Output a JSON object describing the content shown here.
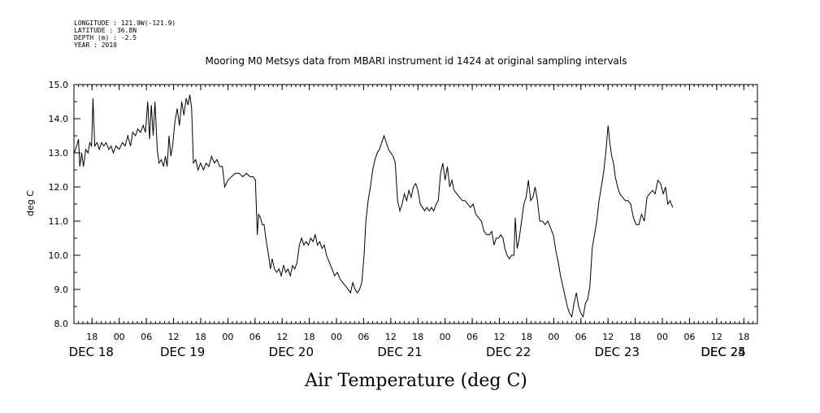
{
  "header": {
    "longitude": "LONGITUDE : 121.9W(-121.9)",
    "latitude": "LATITUDE : 36.8N",
    "depth": "DEPTH (m) : -2.5",
    "year": "YEAR : 2010"
  },
  "chart_data": {
    "type": "line",
    "title": "Mooring M0 Metsys data from MBARI instrument id 1424 at original sampling intervals",
    "xlabel": "Air Temperature (deg C)",
    "ylabel": "deg C",
    "ylim": [
      8.0,
      15.0
    ],
    "y_ticks": [
      "8.0",
      "9.0",
      "10.0",
      "11.0",
      "12.0",
      "13.0",
      "14.0",
      "15.0"
    ],
    "x_unit": "hours since Dec 18 00:00",
    "xlim": [
      14,
      165
    ],
    "hour_ticks": [
      {
        "x": 18,
        "label": "18"
      },
      {
        "x": 24,
        "label": "00"
      },
      {
        "x": 30,
        "label": "06"
      },
      {
        "x": 36,
        "label": "12"
      },
      {
        "x": 42,
        "label": "18"
      },
      {
        "x": 48,
        "label": "00"
      },
      {
        "x": 54,
        "label": "06"
      },
      {
        "x": 60,
        "label": "12"
      },
      {
        "x": 66,
        "label": "18"
      },
      {
        "x": 72,
        "label": "00"
      },
      {
        "x": 78,
        "label": "06"
      },
      {
        "x": 84,
        "label": "12"
      },
      {
        "x": 90,
        "label": "18"
      },
      {
        "x": 96,
        "label": "00"
      },
      {
        "x": 102,
        "label": "06"
      },
      {
        "x": 108,
        "label": "12"
      },
      {
        "x": 114,
        "label": "18"
      },
      {
        "x": 120,
        "label": "00"
      },
      {
        "x": 126,
        "label": "06"
      },
      {
        "x": 132,
        "label": "12"
      },
      {
        "x": 138,
        "label": "18"
      },
      {
        "x": 144,
        "label": "00"
      },
      {
        "x": 150,
        "label": "06"
      },
      {
        "x": 156,
        "label": "12"
      },
      {
        "x": 162,
        "label": "18"
      }
    ],
    "date_labels": [
      {
        "x": 18,
        "label": "DEC 18"
      },
      {
        "x": 38,
        "label": "DEC 19"
      },
      {
        "x": 62,
        "label": "DEC 20"
      },
      {
        "x": 86,
        "label": "DEC 21"
      },
      {
        "x": 110,
        "label": "DEC 22"
      },
      {
        "x": 134,
        "label": "DEC 23"
      },
      {
        "x": 158,
        "label": "DEC 24"
      },
      {
        "x": 182,
        "label": "DEC 25"
      }
    ],
    "series": [
      {
        "color": "#000000",
        "points": [
          [
            14.1,
            13.0
          ],
          [
            14.6,
            13.2
          ],
          [
            15.0,
            13.4
          ],
          [
            15.3,
            12.6
          ],
          [
            15.7,
            13.0
          ],
          [
            16.1,
            12.6
          ],
          [
            16.6,
            13.1
          ],
          [
            17.1,
            13.0
          ],
          [
            17.5,
            13.3
          ],
          [
            17.9,
            13.2
          ],
          [
            18.2,
            14.6
          ],
          [
            18.6,
            13.2
          ],
          [
            19.1,
            13.3
          ],
          [
            19.6,
            13.1
          ],
          [
            20.1,
            13.3
          ],
          [
            20.6,
            13.2
          ],
          [
            21.1,
            13.3
          ],
          [
            21.7,
            13.1
          ],
          [
            22.2,
            13.2
          ],
          [
            22.7,
            13.0
          ],
          [
            23.3,
            13.2
          ],
          [
            24.0,
            13.1
          ],
          [
            24.7,
            13.3
          ],
          [
            25.3,
            13.2
          ],
          [
            25.9,
            13.5
          ],
          [
            26.5,
            13.2
          ],
          [
            27.0,
            13.6
          ],
          [
            27.6,
            13.5
          ],
          [
            28.1,
            13.7
          ],
          [
            28.7,
            13.6
          ],
          [
            29.3,
            13.8
          ],
          [
            29.8,
            13.6
          ],
          [
            30.3,
            14.5
          ],
          [
            30.7,
            13.4
          ],
          [
            31.1,
            14.4
          ],
          [
            31.5,
            13.5
          ],
          [
            31.9,
            14.5
          ],
          [
            32.4,
            13.1
          ],
          [
            32.8,
            12.7
          ],
          [
            33.3,
            12.8
          ],
          [
            33.8,
            12.6
          ],
          [
            34.2,
            12.9
          ],
          [
            34.6,
            12.6
          ],
          [
            35.0,
            13.5
          ],
          [
            35.4,
            12.9
          ],
          [
            35.8,
            13.2
          ],
          [
            36.3,
            13.9
          ],
          [
            36.8,
            14.3
          ],
          [
            37.3,
            13.8
          ],
          [
            37.8,
            14.5
          ],
          [
            38.3,
            14.1
          ],
          [
            38.8,
            14.6
          ],
          [
            39.2,
            14.4
          ],
          [
            39.6,
            14.7
          ],
          [
            40.0,
            14.3
          ],
          [
            40.4,
            12.7
          ],
          [
            40.9,
            12.8
          ],
          [
            41.4,
            12.5
          ],
          [
            42.0,
            12.7
          ],
          [
            42.6,
            12.5
          ],
          [
            43.2,
            12.7
          ],
          [
            43.8,
            12.6
          ],
          [
            44.4,
            12.9
          ],
          [
            45.0,
            12.7
          ],
          [
            45.6,
            12.8
          ],
          [
            46.2,
            12.6
          ],
          [
            46.8,
            12.6
          ],
          [
            47.3,
            12.0
          ],
          [
            48.0,
            12.2
          ],
          [
            48.8,
            12.3
          ],
          [
            49.6,
            12.4
          ],
          [
            50.5,
            12.4
          ],
          [
            51.3,
            12.3
          ],
          [
            52.1,
            12.4
          ],
          [
            52.9,
            12.3
          ],
          [
            53.6,
            12.3
          ],
          [
            54.1,
            12.2
          ],
          [
            54.5,
            10.6
          ],
          [
            54.8,
            11.2
          ],
          [
            55.2,
            11.1
          ],
          [
            55.6,
            10.9
          ],
          [
            56.0,
            10.9
          ],
          [
            56.5,
            10.4
          ],
          [
            57.0,
            10.0
          ],
          [
            57.4,
            9.6
          ],
          [
            57.8,
            9.9
          ],
          [
            58.3,
            9.6
          ],
          [
            58.8,
            9.5
          ],
          [
            59.3,
            9.6
          ],
          [
            59.8,
            9.4
          ],
          [
            60.3,
            9.7
          ],
          [
            60.8,
            9.5
          ],
          [
            61.3,
            9.6
          ],
          [
            61.8,
            9.4
          ],
          [
            62.3,
            9.7
          ],
          [
            62.8,
            9.6
          ],
          [
            63.3,
            9.8
          ],
          [
            63.8,
            10.3
          ],
          [
            64.3,
            10.5
          ],
          [
            64.8,
            10.3
          ],
          [
            65.3,
            10.4
          ],
          [
            65.8,
            10.3
          ],
          [
            66.3,
            10.5
          ],
          [
            66.8,
            10.4
          ],
          [
            67.3,
            10.6
          ],
          [
            67.8,
            10.3
          ],
          [
            68.3,
            10.4
          ],
          [
            68.8,
            10.2
          ],
          [
            69.3,
            10.3
          ],
          [
            69.8,
            10.0
          ],
          [
            70.4,
            9.8
          ],
          [
            71.0,
            9.6
          ],
          [
            71.6,
            9.4
          ],
          [
            72.2,
            9.5
          ],
          [
            72.8,
            9.3
          ],
          [
            73.4,
            9.2
          ],
          [
            74.0,
            9.1
          ],
          [
            74.6,
            9.0
          ],
          [
            75.1,
            8.9
          ],
          [
            75.6,
            9.2
          ],
          [
            76.1,
            9.0
          ],
          [
            76.6,
            8.9
          ],
          [
            77.1,
            9.0
          ],
          [
            77.6,
            9.2
          ],
          [
            78.1,
            10.0
          ],
          [
            78.5,
            11.0
          ],
          [
            79.0,
            11.6
          ],
          [
            79.5,
            12.0
          ],
          [
            80.0,
            12.5
          ],
          [
            80.5,
            12.8
          ],
          [
            81.0,
            13.0
          ],
          [
            81.5,
            13.1
          ],
          [
            82.0,
            13.3
          ],
          [
            82.5,
            13.5
          ],
          [
            83.0,
            13.3
          ],
          [
            83.5,
            13.1
          ],
          [
            84.0,
            13.0
          ],
          [
            84.5,
            12.9
          ],
          [
            85.0,
            12.7
          ],
          [
            85.5,
            11.6
          ],
          [
            86.0,
            11.3
          ],
          [
            86.5,
            11.5
          ],
          [
            87.0,
            11.8
          ],
          [
            87.5,
            11.6
          ],
          [
            88.0,
            11.9
          ],
          [
            88.5,
            11.7
          ],
          [
            89.0,
            12.0
          ],
          [
            89.5,
            12.1
          ],
          [
            90.0,
            11.9
          ],
          [
            90.5,
            11.5
          ],
          [
            91.0,
            11.4
          ],
          [
            91.5,
            11.3
          ],
          [
            92.0,
            11.4
          ],
          [
            92.5,
            11.3
          ],
          [
            93.0,
            11.4
          ],
          [
            93.5,
            11.3
          ],
          [
            94.0,
            11.5
          ],
          [
            94.5,
            11.6
          ],
          [
            95.0,
            12.4
          ],
          [
            95.5,
            12.7
          ],
          [
            96.0,
            12.2
          ],
          [
            96.5,
            12.6
          ],
          [
            97.0,
            12.0
          ],
          [
            97.5,
            12.2
          ],
          [
            98.0,
            11.9
          ],
          [
            98.6,
            11.8
          ],
          [
            99.2,
            11.7
          ],
          [
            99.8,
            11.6
          ],
          [
            100.4,
            11.6
          ],
          [
            101.0,
            11.5
          ],
          [
            101.6,
            11.4
          ],
          [
            102.2,
            11.5
          ],
          [
            102.8,
            11.2
          ],
          [
            103.4,
            11.1
          ],
          [
            104.0,
            11.0
          ],
          [
            104.6,
            10.7
          ],
          [
            105.2,
            10.6
          ],
          [
            105.8,
            10.6
          ],
          [
            106.3,
            10.7
          ],
          [
            106.8,
            10.3
          ],
          [
            107.3,
            10.5
          ],
          [
            107.8,
            10.5
          ],
          [
            108.3,
            10.6
          ],
          [
            108.8,
            10.5
          ],
          [
            109.2,
            10.2
          ],
          [
            109.7,
            10.0
          ],
          [
            110.2,
            9.9
          ],
          [
            110.7,
            10.0
          ],
          [
            111.2,
            10.0
          ],
          [
            111.5,
            11.1
          ],
          [
            111.9,
            10.2
          ],
          [
            112.4,
            10.5
          ],
          [
            112.9,
            11.0
          ],
          [
            113.4,
            11.5
          ],
          [
            113.9,
            11.7
          ],
          [
            114.4,
            12.2
          ],
          [
            114.9,
            11.6
          ],
          [
            115.4,
            11.7
          ],
          [
            115.9,
            12.0
          ],
          [
            116.4,
            11.6
          ],
          [
            116.9,
            11.0
          ],
          [
            117.5,
            11.0
          ],
          [
            118.1,
            10.9
          ],
          [
            118.7,
            11.0
          ],
          [
            119.3,
            10.8
          ],
          [
            119.9,
            10.6
          ],
          [
            120.5,
            10.1
          ],
          [
            121.0,
            9.8
          ],
          [
            121.5,
            9.4
          ],
          [
            122.0,
            9.1
          ],
          [
            122.5,
            8.8
          ],
          [
            123.0,
            8.5
          ],
          [
            123.5,
            8.3
          ],
          [
            124.0,
            8.2
          ],
          [
            124.5,
            8.6
          ],
          [
            125.0,
            8.9
          ],
          [
            125.5,
            8.5
          ],
          [
            126.0,
            8.3
          ],
          [
            126.5,
            8.2
          ],
          [
            127.0,
            8.6
          ],
          [
            127.5,
            8.7
          ],
          [
            128.0,
            9.1
          ],
          [
            128.5,
            10.2
          ],
          [
            129.0,
            10.6
          ],
          [
            129.5,
            11.0
          ],
          [
            130.0,
            11.6
          ],
          [
            130.5,
            12.0
          ],
          [
            131.0,
            12.4
          ],
          [
            131.5,
            13.0
          ],
          [
            132.0,
            13.8
          ],
          [
            132.4,
            13.3
          ],
          [
            132.8,
            12.9
          ],
          [
            133.2,
            12.7
          ],
          [
            133.6,
            12.3
          ],
          [
            134.1,
            12.0
          ],
          [
            134.6,
            11.8
          ],
          [
            135.2,
            11.7
          ],
          [
            135.8,
            11.6
          ],
          [
            136.4,
            11.6
          ],
          [
            137.0,
            11.5
          ],
          [
            137.6,
            11.1
          ],
          [
            138.2,
            10.9
          ],
          [
            138.8,
            10.9
          ],
          [
            139.4,
            11.2
          ],
          [
            140.0,
            11.0
          ],
          [
            140.6,
            11.7
          ],
          [
            141.2,
            11.8
          ],
          [
            141.8,
            11.9
          ],
          [
            142.4,
            11.8
          ],
          [
            143.0,
            12.2
          ],
          [
            143.6,
            12.1
          ],
          [
            144.2,
            11.8
          ],
          [
            144.7,
            12.0
          ],
          [
            145.2,
            11.5
          ],
          [
            145.7,
            11.6
          ],
          [
            146.3,
            11.4
          ]
        ]
      }
    ]
  }
}
